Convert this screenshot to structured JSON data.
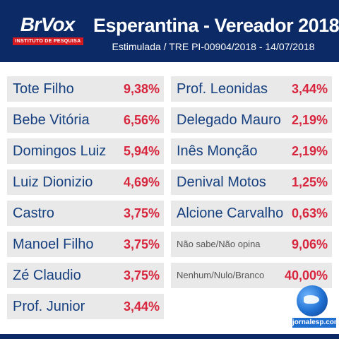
{
  "header": {
    "logo_text": "BrVox",
    "logo_subtext": "INSTITUTO DE PESQUISA",
    "title": "Esperantina - Vereador 2018",
    "subtitle": "Estimulada / TRE PI-00904/2018 - 14/07/2018"
  },
  "left_column": [
    {
      "name": "Tote Filho",
      "pct": "9,38%"
    },
    {
      "name": "Bebe Vitória",
      "pct": "6,56%"
    },
    {
      "name": "Domingos Luiz",
      "pct": "5,94%"
    },
    {
      "name": "Luiz Dionizio",
      "pct": "4,69%"
    },
    {
      "name": "Castro",
      "pct": "3,75%"
    },
    {
      "name": "Manoel Filho",
      "pct": "3,75%"
    },
    {
      "name": "Zé Claudio",
      "pct": "3,75%"
    },
    {
      "name": "Prof. Junior",
      "pct": "3,44%"
    }
  ],
  "right_column": [
    {
      "name": "Prof. Leonidas",
      "pct": "3,44%"
    },
    {
      "name": "Delegado Mauro",
      "pct": "2,19%"
    },
    {
      "name": "Inês Monção",
      "pct": "2,19%"
    },
    {
      "name": "Denival Motos",
      "pct": "1,25%"
    },
    {
      "name": "Alcione Carvalho",
      "pct": "0,63%"
    },
    {
      "name": "Não sabe/Não opina",
      "pct": "9,06%"
    },
    {
      "name": "Nenhum/Nulo/Branco",
      "pct": "40,00%"
    }
  ],
  "footer": {
    "site": "jornalesp.com"
  },
  "colors": {
    "header_bg": "#0c2b66",
    "name": "#16407f",
    "pct": "#d7263d",
    "row_bg": "#e9e9e9"
  }
}
